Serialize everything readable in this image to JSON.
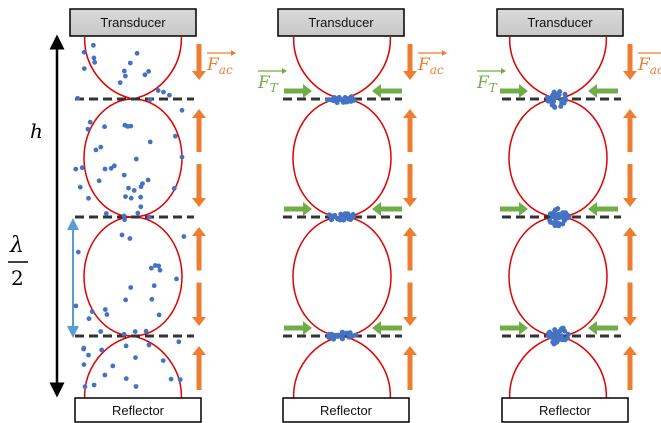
{
  "panels": [
    {
      "transducer_label": "Transducer",
      "reflector_label": "Reflector",
      "force_label": "F",
      "force_subscript": "ac",
      "show_trap_force": false
    },
    {
      "transducer_label": "Transducer",
      "reflector_label": "Reflector",
      "force_label": "F",
      "force_subscript": "ac",
      "trap_force_label": "F",
      "trap_force_subscript": "T",
      "show_trap_force": true
    },
    {
      "transducer_label": "Transducer",
      "reflector_label": "Reflector",
      "force_label": "F",
      "force_subscript": "ac",
      "trap_force_label": "F",
      "trap_force_subscript": "T",
      "show_trap_force": true
    }
  ],
  "labels": {
    "height": "h",
    "wavelength_numerator": "λ",
    "wavelength_denominator": "2"
  },
  "colors": {
    "acoustic_force": "#ED7D31",
    "trap_force": "#70AD47",
    "particles": "#4472C4",
    "pressure_curve": "#E00000",
    "node_line": "#333333",
    "half_wavelength_arrow": "#5B9BD5",
    "box_fill_top": "#D9D9D9",
    "box_fill_bottom": "#FFFFFF"
  }
}
